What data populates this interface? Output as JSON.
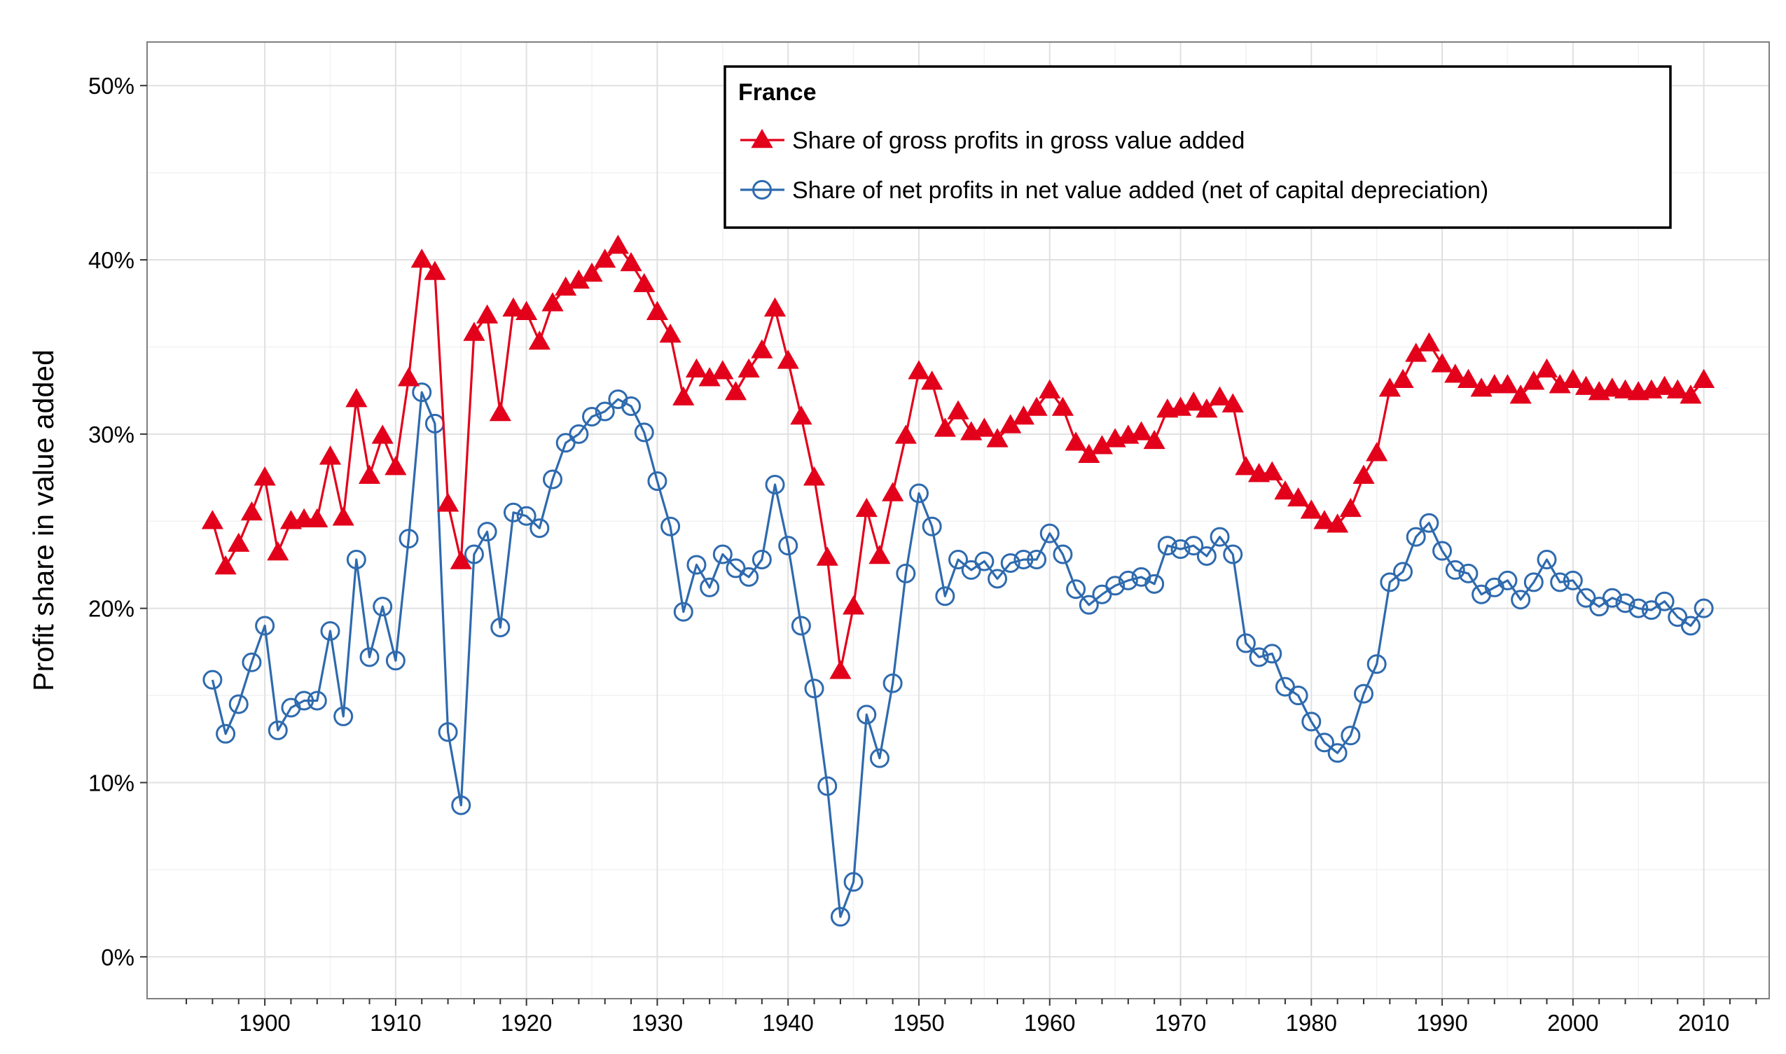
{
  "chart_data": {
    "type": "line",
    "title": "",
    "xlabel": "",
    "ylabel": "Profit share in value added",
    "xlim": [
      1891,
      2015
    ],
    "ylim": [
      -0.024,
      0.525
    ],
    "x_ticks": [
      1900,
      1910,
      1920,
      1930,
      1940,
      1950,
      1960,
      1970,
      1980,
      1990,
      2000,
      2010
    ],
    "x_tick_labels": [
      "1900",
      "1910",
      "1920",
      "1930",
      "1940",
      "1950",
      "1960",
      "1970",
      "1980",
      "1990",
      "2000",
      "2010"
    ],
    "y_ticks": [
      0,
      0.1,
      0.2,
      0.3,
      0.4,
      0.5
    ],
    "y_tick_labels": [
      "0%",
      "10%",
      "20%",
      "30%",
      "40%",
      "50%"
    ],
    "grid": true,
    "legend": {
      "title": "France",
      "placement": "top-right"
    },
    "x": [
      1896,
      1897,
      1898,
      1899,
      1900,
      1901,
      1902,
      1903,
      1904,
      1905,
      1906,
      1907,
      1908,
      1909,
      1910,
      1911,
      1912,
      1913,
      1914,
      1915,
      1916,
      1917,
      1918,
      1919,
      1920,
      1921,
      1922,
      1923,
      1924,
      1925,
      1926,
      1927,
      1928,
      1929,
      1930,
      1931,
      1932,
      1933,
      1934,
      1935,
      1936,
      1937,
      1938,
      1939,
      1940,
      1941,
      1942,
      1943,
      1944,
      1945,
      1946,
      1947,
      1948,
      1949,
      1950,
      1951,
      1952,
      1953,
      1954,
      1955,
      1956,
      1957,
      1958,
      1959,
      1960,
      1961,
      1962,
      1963,
      1964,
      1965,
      1966,
      1967,
      1968,
      1969,
      1970,
      1971,
      1972,
      1973,
      1974,
      1975,
      1976,
      1977,
      1978,
      1979,
      1980,
      1981,
      1982,
      1983,
      1984,
      1985,
      1986,
      1987,
      1988,
      1989,
      1990,
      1991,
      1992,
      1993,
      1994,
      1995,
      1996,
      1997,
      1998,
      1999,
      2000,
      2001,
      2002,
      2003,
      2004,
      2005,
      2006,
      2007,
      2008,
      2009,
      2010
    ],
    "series": [
      {
        "name": "Share of gross profits in gross value added",
        "color": "#e3001b",
        "marker": "filled-triangle",
        "values": [
          0.25,
          0.224,
          0.237,
          0.255,
          0.275,
          0.232,
          0.25,
          0.251,
          0.251,
          0.287,
          0.252,
          0.32,
          0.276,
          0.299,
          0.281,
          0.332,
          0.4,
          0.393,
          0.26,
          0.227,
          0.358,
          0.368,
          0.312,
          0.372,
          0.37,
          0.353,
          0.375,
          0.384,
          0.388,
          0.392,
          0.4,
          0.408,
          0.398,
          0.386,
          0.37,
          0.357,
          0.321,
          0.337,
          0.332,
          0.336,
          0.324,
          0.337,
          0.348,
          0.372,
          0.342,
          0.31,
          0.275,
          0.229,
          0.164,
          0.201,
          0.257,
          0.23,
          0.266,
          0.299,
          0.336,
          0.33,
          0.303,
          0.313,
          0.301,
          0.303,
          0.297,
          0.305,
          0.31,
          0.315,
          0.325,
          0.315,
          0.295,
          0.288,
          0.293,
          0.297,
          0.299,
          0.301,
          0.296,
          0.314,
          0.315,
          0.318,
          0.314,
          0.321,
          0.317,
          0.281,
          0.277,
          0.278,
          0.267,
          0.263,
          0.256,
          0.25,
          0.248,
          0.257,
          0.276,
          0.289,
          0.326,
          0.331,
          0.346,
          0.352,
          0.34,
          0.334,
          0.331,
          0.326,
          0.328,
          0.328,
          0.322,
          0.33,
          0.337,
          0.328,
          0.331,
          0.327,
          0.324,
          0.326,
          0.325,
          0.324,
          0.325,
          0.327,
          0.325,
          0.322,
          0.331
        ]
      },
      {
        "name": "Share of net profits in net value added (net of capital depreciation)",
        "color": "#2e6aae",
        "marker": "open-circle",
        "values": [
          0.159,
          0.128,
          0.145,
          0.169,
          0.19,
          0.13,
          0.143,
          0.147,
          0.147,
          0.187,
          0.138,
          0.228,
          0.172,
          0.201,
          0.17,
          0.24,
          0.324,
          0.306,
          0.129,
          0.087,
          0.231,
          0.244,
          0.189,
          0.255,
          0.253,
          0.246,
          0.274,
          0.295,
          0.3,
          0.31,
          0.313,
          0.32,
          0.316,
          0.301,
          0.273,
          0.247,
          0.198,
          0.225,
          0.212,
          0.231,
          0.223,
          0.218,
          0.228,
          0.271,
          0.236,
          0.19,
          0.154,
          0.098,
          0.023,
          0.043,
          0.139,
          0.114,
          0.157,
          0.22,
          0.266,
          0.247,
          0.207,
          0.228,
          0.222,
          0.227,
          0.217,
          0.226,
          0.228,
          0.228,
          0.243,
          0.231,
          0.211,
          0.202,
          0.208,
          0.213,
          0.216,
          0.218,
          0.214,
          0.236,
          0.234,
          0.236,
          0.23,
          0.241,
          0.231,
          0.18,
          0.172,
          0.174,
          0.155,
          0.15,
          0.135,
          0.123,
          0.117,
          0.127,
          0.151,
          0.168,
          0.215,
          0.221,
          0.241,
          0.249,
          0.233,
          0.222,
          0.22,
          0.208,
          0.212,
          0.216,
          0.205,
          0.215,
          0.228,
          0.215,
          0.216,
          0.206,
          0.201,
          0.206,
          0.203,
          0.2,
          0.199,
          0.204,
          0.195,
          0.19,
          0.2
        ]
      }
    ]
  }
}
